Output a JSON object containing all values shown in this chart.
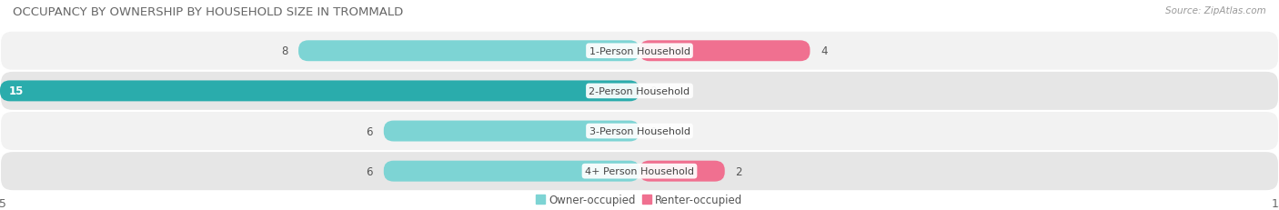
{
  "title": "OCCUPANCY BY OWNERSHIP BY HOUSEHOLD SIZE IN TROMMALD",
  "source": "Source: ZipAtlas.com",
  "categories": [
    "1-Person Household",
    "2-Person Household",
    "3-Person Household",
    "4+ Person Household"
  ],
  "owner_values": [
    8,
    15,
    6,
    6
  ],
  "renter_values": [
    4,
    0,
    0,
    2
  ],
  "owner_color_light": "#7DD4D4",
  "owner_color_dark": "#2AACAC",
  "renter_color": "#F07090",
  "renter_color_light": "#F8B8C8",
  "row_colors": [
    "#F2F2F2",
    "#E6E6E6"
  ],
  "axis_max": 15,
  "title_fontsize": 9.5,
  "label_fontsize": 8.5,
  "cat_fontsize": 8.0,
  "tick_fontsize": 9,
  "legend_fontsize": 8.5,
  "source_fontsize": 7.5,
  "fig_width": 14.06,
  "fig_height": 2.32,
  "background_color": "#FFFFFF"
}
